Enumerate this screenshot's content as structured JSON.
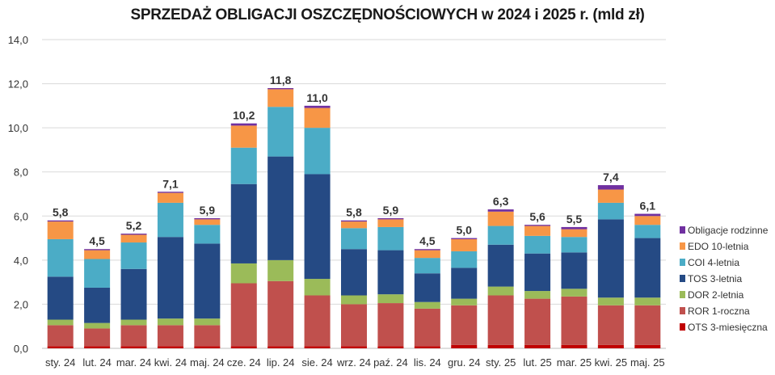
{
  "chart_data": {
    "type": "bar",
    "stacked": true,
    "title": "SPRZEDAŻ OBLIGACJI OSZCZĘDNOŚCIOWYCH w 2024 i 2025 r. (mld zł)",
    "xlabel": "",
    "ylabel": "",
    "ylim": [
      0,
      14
    ],
    "yticks": [
      "0,0",
      "2,0",
      "4,0",
      "6,0",
      "8,0",
      "10,0",
      "12,0",
      "14,0"
    ],
    "grid": true,
    "legend_position": "right",
    "categories": [
      "sty. 24",
      "lut. 24",
      "mar. 24",
      "kwi. 24",
      "maj. 24",
      "cze. 24",
      "lip. 24",
      "sie. 24",
      "wrz. 24",
      "paź. 24",
      "lis. 24",
      "gru. 24",
      "sty. 25",
      "lut. 25",
      "mar. 25",
      "kwi. 25",
      "maj. 25"
    ],
    "totals": [
      "5,8",
      "4,5",
      "5,2",
      "7,1",
      "5,9",
      "10,2",
      "11,8",
      "11,0",
      "5,8",
      "5,9",
      "4,5",
      "5,0",
      "6,3",
      "5,6",
      "5,5",
      "7,4",
      "6,1"
    ],
    "series": [
      {
        "name": "OTS 3-miesięczna",
        "color": "#c00000",
        "values": [
          0.1,
          0.1,
          0.1,
          0.1,
          0.1,
          0.1,
          0.1,
          0.1,
          0.1,
          0.1,
          0.1,
          0.15,
          0.15,
          0.15,
          0.15,
          0.15,
          0.15
        ]
      },
      {
        "name": "ROR 1-roczna",
        "color": "#c0504d",
        "values": [
          0.95,
          0.8,
          0.95,
          0.95,
          0.95,
          2.85,
          2.95,
          2.3,
          1.9,
          1.95,
          1.7,
          1.8,
          2.25,
          2.1,
          2.2,
          1.8,
          1.8
        ]
      },
      {
        "name": "DOR 2-letnia",
        "color": "#9bbb59",
        "values": [
          0.25,
          0.25,
          0.25,
          0.3,
          0.3,
          0.9,
          0.95,
          0.75,
          0.4,
          0.4,
          0.3,
          0.3,
          0.4,
          0.35,
          0.35,
          0.35,
          0.35
        ]
      },
      {
        "name": "TOS 3-letnia",
        "color": "#254a84",
        "values": [
          1.95,
          1.6,
          2.3,
          3.7,
          3.4,
          3.6,
          4.7,
          4.75,
          2.1,
          2.0,
          1.3,
          1.4,
          1.9,
          1.7,
          1.65,
          3.55,
          2.7
        ]
      },
      {
        "name": "COI 4-letnia",
        "color": "#4bacc6",
        "values": [
          1.7,
          1.3,
          1.2,
          1.55,
          0.85,
          1.65,
          2.25,
          2.1,
          0.95,
          1.05,
          0.7,
          0.75,
          0.85,
          0.8,
          0.7,
          0.75,
          0.6
        ]
      },
      {
        "name": "EDO 10-letnia",
        "color": "#f79646",
        "values": [
          0.8,
          0.4,
          0.35,
          0.45,
          0.25,
          1.0,
          0.8,
          0.9,
          0.3,
          0.35,
          0.35,
          0.55,
          0.65,
          0.45,
          0.35,
          0.6,
          0.4
        ]
      },
      {
        "name": "Obligacje rodzinne",
        "color": "#7030a0",
        "values": [
          0.05,
          0.05,
          0.05,
          0.05,
          0.05,
          0.1,
          0.05,
          0.1,
          0.05,
          0.05,
          0.05,
          0.05,
          0.1,
          0.05,
          0.1,
          0.2,
          0.1
        ]
      }
    ]
  }
}
